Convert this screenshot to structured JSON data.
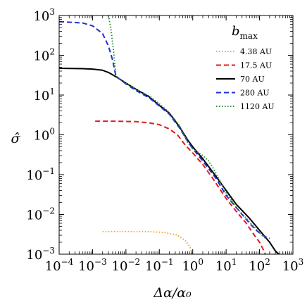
{
  "chart_data": {
    "type": "line",
    "xlabel": "Δα/α₀",
    "ylabel": "σ̂",
    "x_scale": "log",
    "y_scale": "log",
    "xlim": [
      0.0001,
      1000
    ],
    "ylim": [
      0.001,
      1000
    ],
    "grid": false,
    "legend_title": "b_max",
    "legend_title_parts": {
      "main": "b",
      "sub": "max"
    },
    "legend_position": "top-right",
    "x_ticks": [
      {
        "base": "10",
        "exp": "−4"
      },
      {
        "base": "10",
        "exp": "−3"
      },
      {
        "base": "10",
        "exp": "−2"
      },
      {
        "base": "10",
        "exp": "−1"
      },
      {
        "base": "10",
        "exp": "0"
      },
      {
        "base": "10",
        "exp": "1"
      },
      {
        "base": "10",
        "exp": "2"
      },
      {
        "base": "10",
        "exp": "3"
      }
    ],
    "y_ticks": [
      {
        "base": "10",
        "exp": "−3"
      },
      {
        "base": "10",
        "exp": "−2"
      },
      {
        "base": "10",
        "exp": "−1"
      },
      {
        "base": "10",
        "exp": "0"
      },
      {
        "base": "10",
        "exp": "1"
      },
      {
        "base": "10",
        "exp": "2"
      },
      {
        "base": "10",
        "exp": "3"
      }
    ],
    "series": [
      {
        "name": "4.38 AU",
        "color": "#f5a623",
        "style": "dotted",
        "points": [
          [
            0.002,
            0.0037
          ],
          [
            0.01,
            0.0037
          ],
          [
            0.05,
            0.0037
          ],
          [
            0.15,
            0.0035
          ],
          [
            0.35,
            0.003
          ],
          [
            0.6,
            0.0022
          ],
          [
            0.8,
            0.0016
          ],
          [
            1.0,
            0.001
          ]
        ]
      },
      {
        "name": "17.5 AU",
        "color": "#e41a1c",
        "style": "dashed",
        "points": [
          [
            0.0012,
            2.2
          ],
          [
            0.005,
            2.2
          ],
          [
            0.02,
            2.15
          ],
          [
            0.05,
            2.0
          ],
          [
            0.1,
            1.8
          ],
          [
            0.2,
            1.4
          ],
          [
            0.35,
            1.0
          ],
          [
            0.6,
            0.55
          ],
          [
            1.0,
            0.35
          ],
          [
            2.0,
            0.18
          ],
          [
            4.0,
            0.08
          ],
          [
            10,
            0.025
          ],
          [
            20,
            0.012
          ],
          [
            40,
            0.006
          ],
          [
            70,
            0.003
          ],
          [
            100,
            0.002
          ],
          [
            130,
            0.0013
          ],
          [
            150,
            0.001
          ]
        ]
      },
      {
        "name": "70 AU",
        "color": "#000000",
        "style": "solid",
        "points": [
          [
            0.0001,
            47
          ],
          [
            0.0005,
            46
          ],
          [
            0.001,
            45
          ],
          [
            0.002,
            42
          ],
          [
            0.003,
            37
          ],
          [
            0.005,
            29
          ],
          [
            0.01,
            20
          ],
          [
            0.02,
            14
          ],
          [
            0.05,
            9
          ],
          [
            0.1,
            5.5
          ],
          [
            0.2,
            3.5
          ],
          [
            0.4,
            1.6
          ],
          [
            0.7,
            0.75
          ],
          [
            1.0,
            0.5
          ],
          [
            2.0,
            0.25
          ],
          [
            5.0,
            0.09
          ],
          [
            10,
            0.04
          ],
          [
            20,
            0.018
          ],
          [
            50,
            0.008
          ],
          [
            100,
            0.004
          ],
          [
            200,
            0.002
          ],
          [
            300,
            0.0012
          ],
          [
            380,
            0.001
          ]
        ]
      },
      {
        "name": "280 AU",
        "color": "#1f2fd6",
        "style": "dashed",
        "points": [
          [
            0.0001,
            700
          ],
          [
            0.0005,
            650
          ],
          [
            0.001,
            550
          ],
          [
            0.002,
            350
          ],
          [
            0.003,
            170
          ],
          [
            0.004,
            75
          ],
          [
            0.005,
            30
          ],
          [
            0.01,
            19
          ],
          [
            0.02,
            13
          ],
          [
            0.05,
            8.5
          ],
          [
            0.1,
            5.3
          ],
          [
            0.2,
            3.3
          ],
          [
            0.4,
            1.5
          ],
          [
            0.7,
            0.7
          ],
          [
            1.0,
            0.45
          ],
          [
            2.0,
            0.22
          ],
          [
            5.0,
            0.08
          ],
          [
            10,
            0.03
          ],
          [
            20,
            0.015
          ],
          [
            50,
            0.006
          ],
          [
            80,
            0.004
          ],
          [
            120,
            0.003
          ],
          [
            200,
            0.0025
          ]
        ]
      },
      {
        "name": "1120 AU",
        "color": "#2e8b2e",
        "style": "dotted",
        "points": [
          [
            0.003,
            1000
          ],
          [
            0.0035,
            500
          ],
          [
            0.004,
            200
          ],
          [
            0.0045,
            80
          ],
          [
            0.005,
            30
          ],
          [
            0.01,
            20
          ],
          [
            0.02,
            14
          ],
          [
            0.05,
            9.5
          ],
          [
            0.1,
            6
          ],
          [
            0.2,
            3.6
          ],
          [
            0.4,
            1.7
          ],
          [
            0.7,
            0.65
          ],
          [
            1.0,
            0.45
          ],
          [
            2.0,
            0.3
          ],
          [
            3.0,
            0.22
          ],
          [
            4.0,
            0.15
          ],
          [
            6.0,
            0.08
          ],
          [
            10,
            0.035
          ],
          [
            20,
            0.015
          ],
          [
            50,
            0.0065
          ],
          [
            100,
            0.0035
          ],
          [
            150,
            0.0025
          ]
        ]
      }
    ]
  }
}
